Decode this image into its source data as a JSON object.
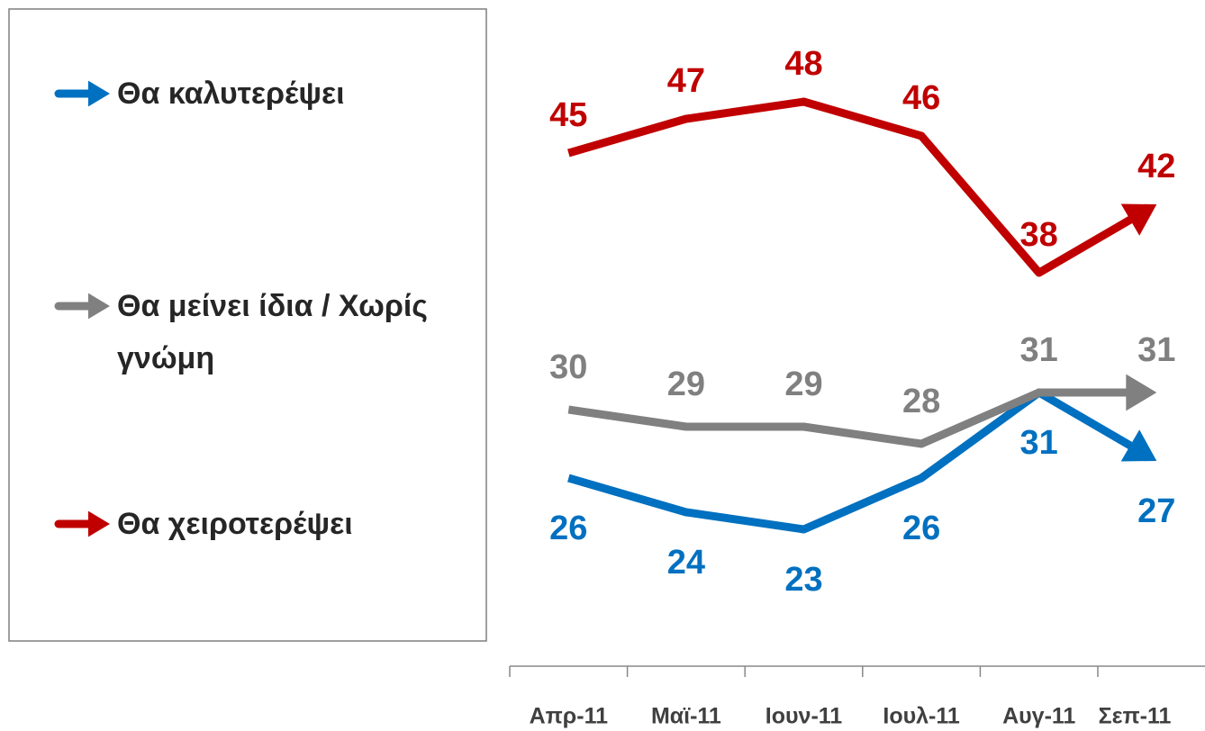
{
  "chart_data": {
    "type": "line",
    "categories": [
      "Απρ-11",
      "Μαϊ-11",
      "Ιουν-11",
      "Ιουλ-11",
      "Αυγ-11",
      "Σεπ-11"
    ],
    "series": [
      {
        "name": "Θα καλυτερέψει",
        "color": "#0070c0",
        "values": [
          26,
          24,
          23,
          26,
          31,
          27
        ]
      },
      {
        "name": "Θα μείνει ίδια / Χωρίς γνώμη",
        "color": "#808080",
        "values": [
          30,
          29,
          29,
          28,
          31,
          31
        ]
      },
      {
        "name": "Θα χειροτερέψει",
        "color": "#c00000",
        "values": [
          45,
          47,
          48,
          46,
          38,
          42
        ]
      }
    ],
    "ylim": [
      15,
      54
    ],
    "legend": "left"
  }
}
